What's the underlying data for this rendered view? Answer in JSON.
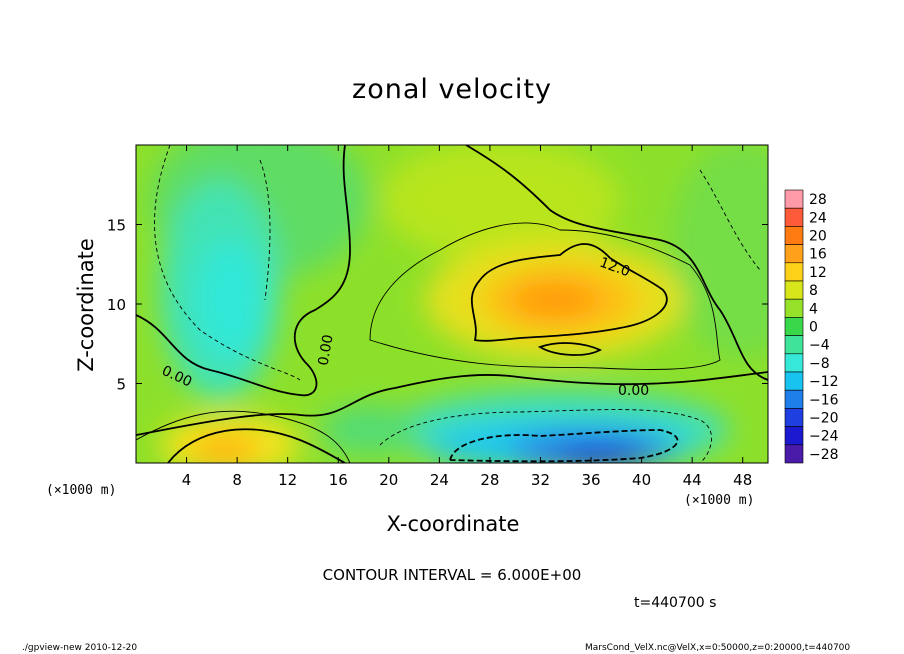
{
  "chart_data": {
    "type": "heatmap",
    "title": "zonal velocity",
    "xlabel": "X-coordinate",
    "ylabel": "Z-coordinate",
    "x_unit": "(×1000 m)",
    "x_unit_right": "(×1000 m)",
    "x_ticks": [
      4,
      8,
      12,
      16,
      20,
      24,
      28,
      32,
      36,
      40,
      44,
      48
    ],
    "y_ticks": [
      5,
      10,
      15
    ],
    "xlim": [
      0,
      50
    ],
    "ylim": [
      0,
      20
    ],
    "colorbar": {
      "ticks": [
        28,
        24,
        20,
        16,
        12,
        8,
        4,
        0,
        -4,
        -8,
        -12,
        -16,
        -20,
        -24,
        -28
      ],
      "range": [
        -30,
        30
      ]
    },
    "contour_labels": [
      "0.00",
      "0.00",
      "0.00",
      "12.0"
    ],
    "contour_interval_text": "CONTOUR INTERVAL = 6.000E+00",
    "time_text": "t=440700 s",
    "features": [
      {
        "kind": "max",
        "x": 34,
        "z": 10,
        "value": 16
      },
      {
        "kind": "max",
        "x": 8,
        "z": 1,
        "value": 14
      },
      {
        "kind": "min",
        "x": 36,
        "z": 1,
        "value": -20
      },
      {
        "kind": "min",
        "x": 7,
        "z": 11,
        "value": -9
      }
    ]
  },
  "footer": {
    "left": "./gpview-new   2010-12-20",
    "right": "MarsCond_VelX.nc@VelX,x=0:50000,z=0:20000,t=440700"
  }
}
